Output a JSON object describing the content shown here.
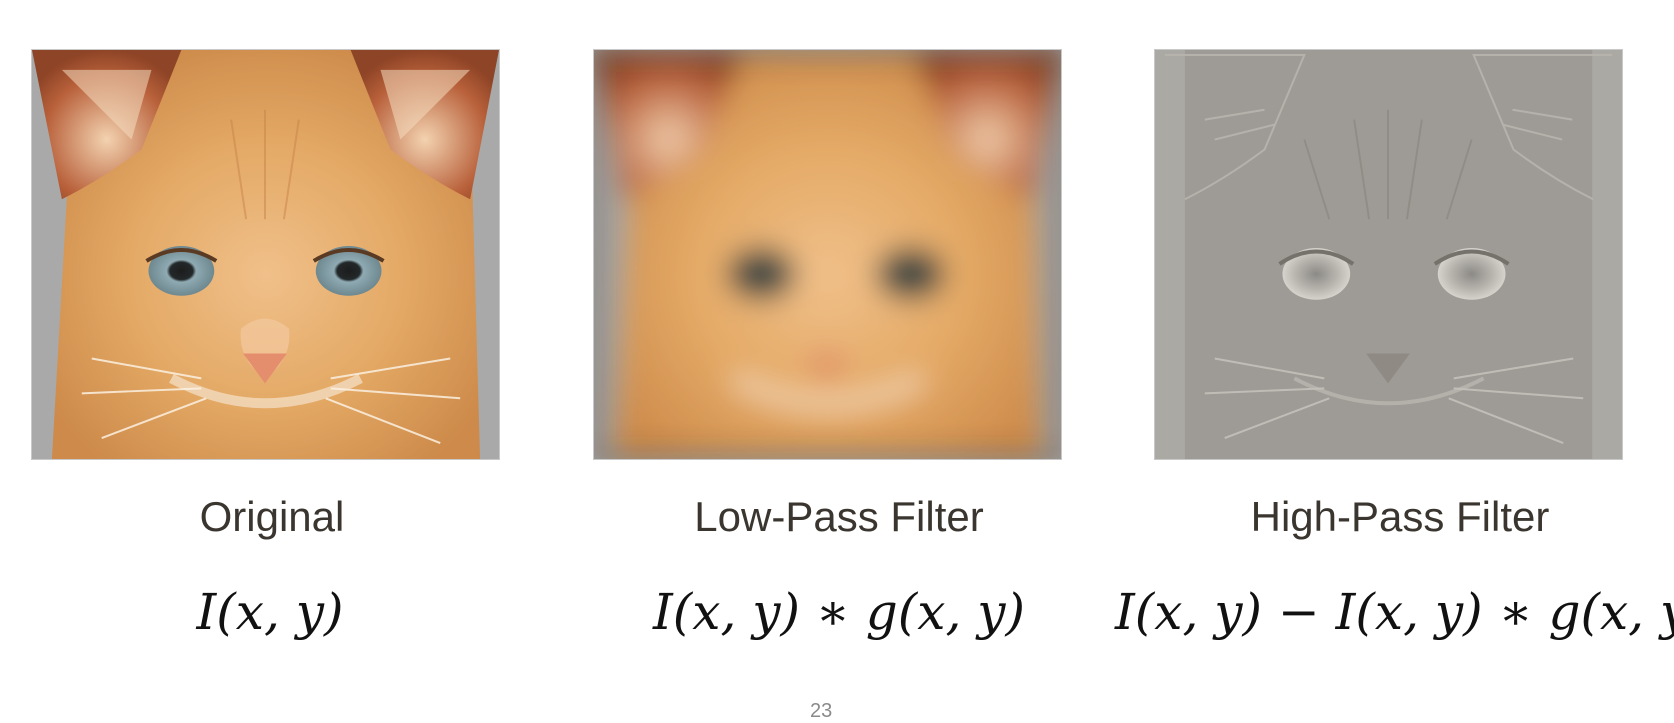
{
  "panels": [
    {
      "caption": "Original",
      "formula": "I(x, y)",
      "image_alt": "orange kitten, original"
    },
    {
      "caption": "Low-Pass Filter",
      "formula": "I(x, y) ∗ g(x, y)",
      "image_alt": "orange kitten, blurred"
    },
    {
      "caption": "High-Pass Filter",
      "formula": "I(x, y) − I(x, y) ∗ g(x, y)",
      "image_alt": "kitten edges on gray"
    }
  ],
  "colors": {
    "background": "#ffffff",
    "caption_text": "#3a362f",
    "formula_text": "#111111",
    "fur_orange": "#e3a864",
    "fur_dark": "#b8603a",
    "backdrop_gray": "#a9a9a9",
    "highpass_gray": "#9e9b96"
  },
  "page_number": "23"
}
